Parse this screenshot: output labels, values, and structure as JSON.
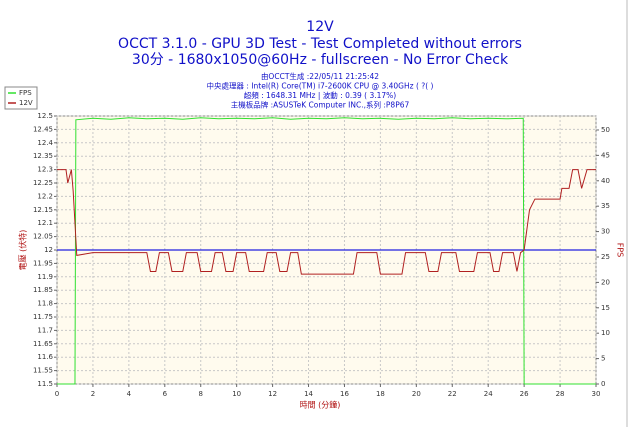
{
  "chart_data": {
    "type": "line",
    "title": "12V",
    "subtitle": "OCCT 3.1.0 - GPU 3D Test - Test Completed without errors",
    "subtitle2": "30分 - 1680x1050@60Hz - fullscreen - No Error Check",
    "info": [
      "由OCCT生成 :22/05/11 21:25:42",
      "中央處理器 : Intel(R) Core(TM) i7-2600K CPU @ 3.40GHz (  ?( )",
      "超頻 : 1648.31 MHz | 波動 : 0.39 ( 3.17%)",
      "主機板品牌 :ASUSTeK Computer INC.,系列 :P8P67"
    ],
    "xlabel": "時間 (分鐘)",
    "ylabel": "電壓 (伏特)",
    "y2label": "FPS",
    "xlim": [
      0,
      30
    ],
    "xticks": [
      0,
      2,
      4,
      6,
      8,
      10,
      12,
      14,
      16,
      18,
      20,
      22,
      24,
      26,
      28,
      30
    ],
    "ylim": [
      11.5,
      12.5
    ],
    "yticks": [
      11.5,
      11.55,
      11.6,
      11.65,
      11.7,
      11.75,
      11.8,
      11.85,
      11.9,
      11.95,
      12,
      12.05,
      12.1,
      12.15,
      12.2,
      12.25,
      12.3,
      12.35,
      12.4,
      12.45,
      12.5
    ],
    "y2lim": [
      0,
      52.75
    ],
    "y2ticks": [
      0,
      5,
      10,
      15,
      20,
      25,
      30,
      35,
      40,
      45,
      50
    ],
    "reference_line": 12,
    "reference_color": "#2020e0",
    "grid": true,
    "legend": "top-left",
    "series": [
      {
        "name": "FPS",
        "color": "#30e030",
        "axis": "y2",
        "x": [
          0,
          1,
          1.05,
          2,
          3,
          4,
          5,
          6,
          7,
          8,
          9,
          10,
          11,
          12,
          13,
          14,
          15,
          16,
          17,
          18,
          19,
          20,
          21,
          22,
          23,
          24,
          25,
          25.95,
          26,
          30
        ],
        "values": [
          0,
          0,
          52,
          52.3,
          52.1,
          52.4,
          52.2,
          52.3,
          52.1,
          52.4,
          52.2,
          52.3,
          52.2,
          52.4,
          52.1,
          52.3,
          52.2,
          52.4,
          52.2,
          52.3,
          52.1,
          52.3,
          52.2,
          52.4,
          52.2,
          52.3,
          52.2,
          52.3,
          0,
          0
        ]
      },
      {
        "name": "12V",
        "color": "#b02020",
        "x": [
          0,
          0.5,
          0.6,
          0.8,
          0.9,
          1,
          1.1,
          2,
          5,
          5.2,
          5.5,
          5.7,
          6.2,
          6.4,
          7,
          7.2,
          7.8,
          8,
          8.6,
          8.8,
          9.2,
          9.4,
          9.8,
          10,
          10.5,
          10.7,
          11.5,
          11.7,
          12.2,
          12.4,
          12.8,
          13,
          13.4,
          13.6,
          16.5,
          16.7,
          17.8,
          18,
          19.2,
          19.4,
          20.5,
          20.7,
          21.2,
          21.4,
          22.2,
          22.4,
          23.2,
          23.4,
          24.1,
          24.3,
          24.6,
          24.8,
          25.4,
          25.6,
          25.8,
          26,
          26.3,
          26.6,
          28,
          28.1,
          28.5,
          28.7,
          29,
          29.2,
          29.5,
          30
        ],
        "values": [
          12.3,
          12.3,
          12.25,
          12.3,
          12.22,
          12.1,
          11.98,
          11.99,
          11.99,
          11.92,
          11.92,
          11.99,
          11.99,
          11.92,
          11.92,
          11.99,
          11.99,
          11.92,
          11.92,
          11.99,
          11.99,
          11.92,
          11.92,
          11.99,
          11.99,
          11.92,
          11.92,
          11.99,
          11.99,
          11.92,
          11.92,
          11.99,
          11.99,
          11.91,
          11.91,
          11.99,
          11.99,
          11.91,
          11.91,
          11.99,
          11.99,
          11.92,
          11.92,
          11.99,
          11.99,
          11.92,
          11.92,
          11.99,
          11.99,
          11.92,
          11.92,
          11.99,
          11.99,
          11.92,
          11.99,
          12,
          12.15,
          12.19,
          12.19,
          12.23,
          12.23,
          12.3,
          12.3,
          12.23,
          12.3,
          12.3
        ]
      }
    ]
  }
}
